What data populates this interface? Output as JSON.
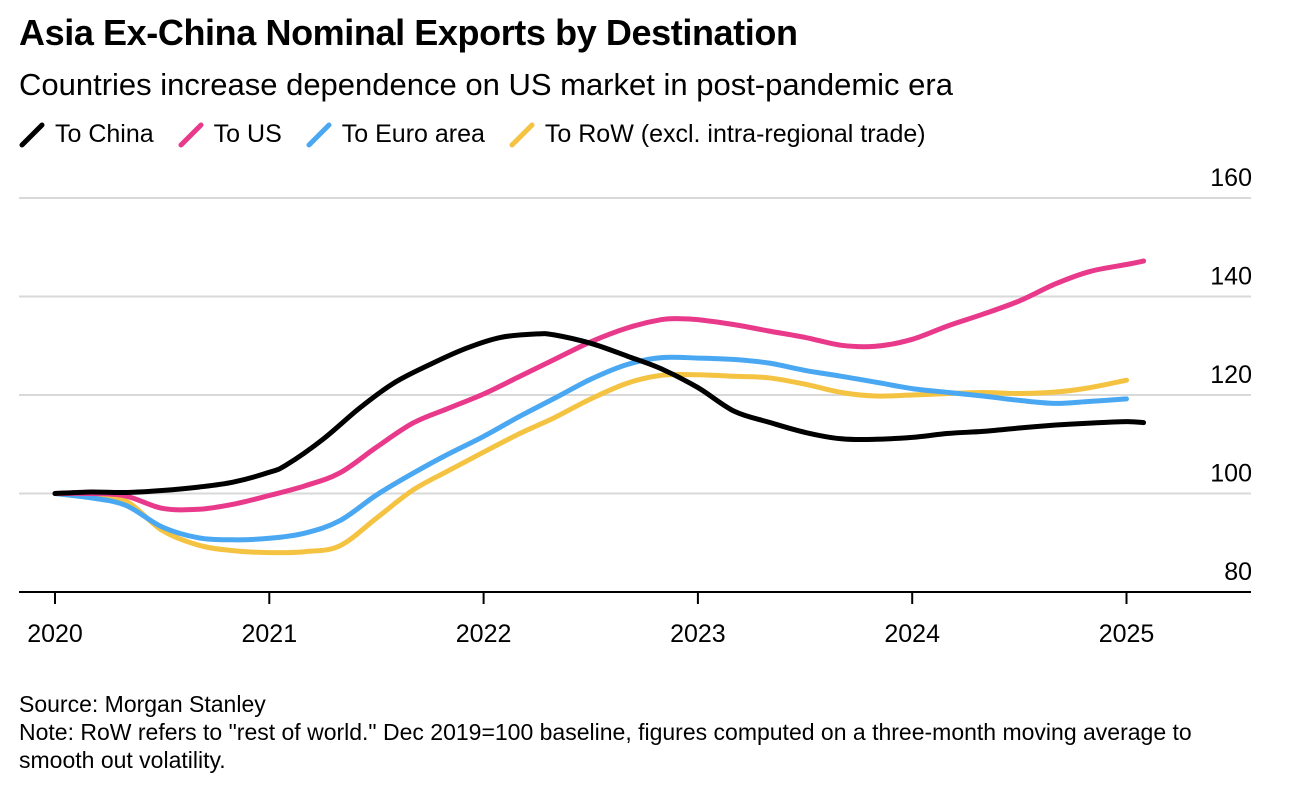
{
  "header": {
    "title": "Asia Ex-China Nominal Exports by Destination",
    "subtitle": "Countries increase dependence on US market in post-pandemic era"
  },
  "legend": [
    {
      "label": "To China",
      "color": "#000000"
    },
    {
      "label": "To US",
      "color": "#e8398b"
    },
    {
      "label": "To Euro area",
      "color": "#4aa8f2"
    },
    {
      "label": "To RoW (excl. intra-regional trade)",
      "color": "#f5c342"
    }
  ],
  "footer": {
    "source": "Source: Morgan Stanley",
    "note": "Note: RoW refers to \"rest of world.\" Dec 2019=100 baseline, figures computed on a three-month moving average to smooth out volatility."
  },
  "chart_data": {
    "type": "line",
    "x_label": "",
    "y_label": "",
    "xlim": [
      2020.0,
      2025.6
    ],
    "ylim": [
      80,
      160
    ],
    "x_ticks": [
      {
        "value": 2020,
        "label": "2020"
      },
      {
        "value": 2021,
        "label": "2021"
      },
      {
        "value": 2022,
        "label": "2022"
      },
      {
        "value": 2023,
        "label": "2023"
      },
      {
        "value": 2024,
        "label": "2024"
      },
      {
        "value": 2025,
        "label": "2025"
      }
    ],
    "y_ticks": [
      {
        "value": 80,
        "label": "80"
      },
      {
        "value": 100,
        "label": "100"
      },
      {
        "value": 120,
        "label": "120"
      },
      {
        "value": 140,
        "label": "140"
      },
      {
        "value": 160,
        "label": "160"
      }
    ],
    "y_axis_side": "right",
    "grid": "horizontal",
    "legend_position": "top-left",
    "series": [
      {
        "name": "To China",
        "color": "#000000",
        "x": [
          2020.0,
          2020.17,
          2020.33,
          2020.5,
          2020.67,
          2020.83,
          2021.0,
          2021.08,
          2021.25,
          2021.42,
          2021.58,
          2021.75,
          2021.92,
          2022.08,
          2022.25,
          2022.33,
          2022.5,
          2022.67,
          2022.83,
          2023.0,
          2023.17,
          2023.33,
          2023.5,
          2023.67,
          2023.83,
          2024.0,
          2024.17,
          2024.33,
          2024.5,
          2024.67,
          2024.83,
          2025.0,
          2025.08
        ],
        "y": [
          100,
          100.3,
          100.2,
          100.6,
          101.3,
          102.3,
          104.3,
          105.8,
          111.0,
          117.3,
          122.4,
          126.2,
          129.5,
          131.7,
          132.4,
          132.2,
          130.5,
          127.9,
          125.3,
          121.5,
          116.7,
          114.5,
          112.4,
          111.1,
          111.0,
          111.4,
          112.2,
          112.6,
          113.3,
          113.9,
          114.3,
          114.6,
          114.4
        ]
      },
      {
        "name": "To US",
        "color": "#e8398b",
        "x": [
          2020.0,
          2020.17,
          2020.33,
          2020.5,
          2020.67,
          2020.83,
          2021.0,
          2021.17,
          2021.33,
          2021.5,
          2021.67,
          2021.83,
          2022.0,
          2022.17,
          2022.33,
          2022.5,
          2022.67,
          2022.83,
          2022.92,
          2023.0,
          2023.17,
          2023.33,
          2023.5,
          2023.67,
          2023.83,
          2024.0,
          2024.17,
          2024.33,
          2024.5,
          2024.67,
          2024.83,
          2025.0,
          2025.08
        ],
        "y": [
          100,
          100.0,
          99.5,
          97.0,
          96.8,
          97.8,
          99.6,
          101.6,
          104.2,
          109.4,
          114.3,
          117.2,
          120.2,
          123.8,
          127.2,
          130.8,
          133.6,
          135.3,
          135.5,
          135.3,
          134.3,
          133.0,
          131.7,
          130.1,
          129.9,
          131.3,
          134.1,
          136.4,
          139.1,
          142.6,
          145.1,
          146.5,
          147.2
        ]
      },
      {
        "name": "To Euro area",
        "color": "#4aa8f2",
        "x": [
          2020.0,
          2020.17,
          2020.33,
          2020.5,
          2020.67,
          2020.83,
          2021.0,
          2021.17,
          2021.33,
          2021.5,
          2021.67,
          2021.83,
          2022.0,
          2022.17,
          2022.33,
          2022.5,
          2022.67,
          2022.83,
          2023.0,
          2023.17,
          2023.33,
          2023.5,
          2023.67,
          2023.83,
          2024.0,
          2024.17,
          2024.33,
          2024.5,
          2024.67,
          2024.83,
          2025.0
        ],
        "y": [
          100,
          99.1,
          97.6,
          93.2,
          91.0,
          90.6,
          90.9,
          92.0,
          94.5,
          99.7,
          104.1,
          107.9,
          111.6,
          115.7,
          119.3,
          123.2,
          126.2,
          127.6,
          127.5,
          127.2,
          126.5,
          125.0,
          123.8,
          122.6,
          121.3,
          120.5,
          119.8,
          118.9,
          118.3,
          118.7,
          119.2
        ]
      },
      {
        "name": "To RoW (excl. intra-regional trade)",
        "color": "#f5c342",
        "x": [
          2020.0,
          2020.17,
          2020.33,
          2020.5,
          2020.67,
          2020.83,
          2021.0,
          2021.17,
          2021.33,
          2021.5,
          2021.67,
          2021.83,
          2022.0,
          2022.17,
          2022.33,
          2022.5,
          2022.67,
          2022.83,
          2023.0,
          2023.17,
          2023.33,
          2023.5,
          2023.67,
          2023.83,
          2024.0,
          2024.17,
          2024.33,
          2024.5,
          2024.67,
          2024.83,
          2025.0
        ],
        "y": [
          100,
          99.6,
          98.5,
          92.5,
          89.5,
          88.4,
          88.0,
          88.2,
          89.4,
          95.0,
          100.7,
          104.5,
          108.4,
          112.2,
          115.4,
          119.2,
          122.4,
          124.0,
          124.1,
          123.8,
          123.5,
          122.2,
          120.5,
          119.8,
          120.0,
          120.3,
          120.5,
          120.3,
          120.6,
          121.5,
          123.0
        ]
      }
    ]
  }
}
